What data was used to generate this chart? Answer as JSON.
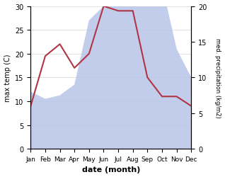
{
  "months": [
    "Jan",
    "Feb",
    "Mar",
    "Apr",
    "May",
    "Jun",
    "Jul",
    "Aug",
    "Sep",
    "Oct",
    "Nov",
    "Dec"
  ],
  "temp": [
    9.0,
    19.5,
    22.0,
    17.0,
    20.0,
    30.0,
    29.0,
    29.0,
    15.0,
    11.0,
    11.0,
    9.0
  ],
  "precip": [
    8.0,
    7.0,
    7.5,
    9.0,
    18.0,
    20.0,
    28.0,
    28.0,
    23.0,
    23.0,
    14.0,
    10.0
  ],
  "temp_color": "#b03545",
  "precip_fill_color": "#b8c4e8",
  "ylim_temp": [
    0,
    30
  ],
  "ylim_precip": [
    0,
    20
  ],
  "yticks_temp": [
    0,
    5,
    10,
    15,
    20,
    25,
    30
  ],
  "yticks_precip": [
    0,
    5,
    10,
    15,
    20
  ],
  "xlabel": "date (month)",
  "ylabel_left": "max temp (C)",
  "ylabel_right": "med. precipitation (kg/m2)",
  "precip_scale_factor": 1.5
}
